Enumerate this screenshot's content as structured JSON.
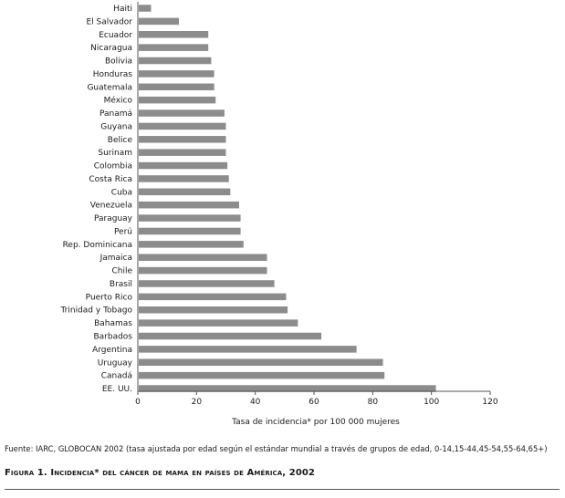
{
  "chart_data": {
    "type": "bar",
    "orientation": "horizontal",
    "categories": [
      "Haiti",
      "El Salvador",
      "Ecuador",
      "Nicaragua",
      "Bolivia",
      "Honduras",
      "Guatemala",
      "México",
      "Panamá",
      "Guyana",
      "Belice",
      "Surinam",
      "Colombia",
      "Costa Rica",
      "Cuba",
      "Venezuela",
      "Paraguay",
      "Perú",
      "Rep. Dominicana",
      "Jamaica",
      "Chile",
      "Brasil",
      "Puerto Rico",
      "Trinidad y Tobago",
      "Bahamas",
      "Barbados",
      "Argentina",
      "Uruguay",
      "Canadá",
      "EE. UU."
    ],
    "values": [
      4.5,
      14,
      24,
      24,
      25,
      26,
      26,
      26.5,
      29.5,
      30,
      30,
      30,
      30.5,
      31,
      31.5,
      34.5,
      35,
      35,
      36,
      44,
      44,
      46.5,
      50.5,
      51,
      54.5,
      62.5,
      74.5,
      83.5,
      84,
      101.5
    ],
    "xlim": [
      0,
      120
    ],
    "xticks": [
      "0",
      "20",
      "40",
      "60",
      "80",
      "100",
      "120"
    ],
    "xlabel": "Tasa de incidencia* por 100 000 mujeres",
    "ylabel": "",
    "title": "",
    "grid": false,
    "bar_color": "#8c8c8c"
  },
  "source_text": "Fuente: IARC, GLOBOCAN 2002 (tasa ajustada por edad según el estándar mundial a través de grupos de edad, 0-14,15-44,45-54,55-64,65+)",
  "figure_caption": "Figura 1. Incidencia* del cáncer de mama en países de América, 2002"
}
